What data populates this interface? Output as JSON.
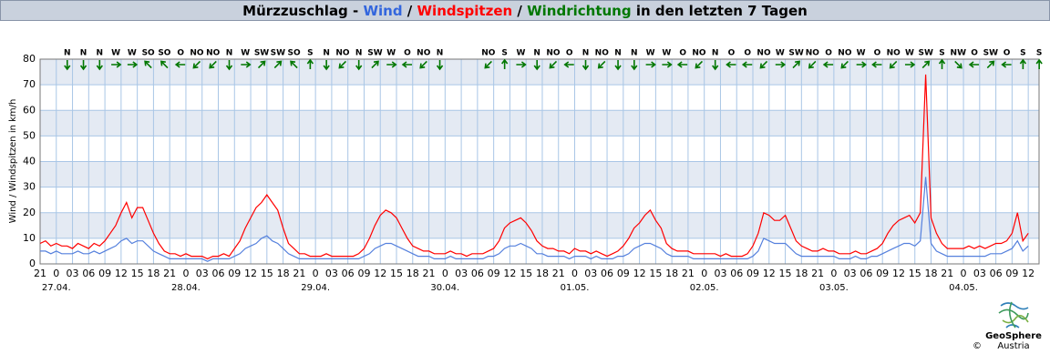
{
  "chart_data": {
    "type": "line",
    "title_prefix": "Mürzzuschlag - ",
    "title_sep": " / ",
    "title_suffix": " in den letzten 7 Tagen",
    "ylabel": "Wind / Windspitzen in km/h",
    "ylim": [
      0,
      80
    ],
    "yticks": [
      0,
      10,
      20,
      30,
      40,
      50,
      60,
      70,
      80
    ],
    "banded_background": true,
    "band_color": "#e4eaf3",
    "grid": true,
    "grid_color": "#a9c6e6",
    "xlim": [
      "26.04. 21:00",
      "04.05. 14:00"
    ],
    "xticks": [
      {
        "value": "26.04. 21:00",
        "label": "21"
      },
      {
        "value": "27.04. 00:00",
        "label": "0"
      },
      {
        "value": "27.04. 03:00",
        "label": "03"
      },
      {
        "value": "27.04. 06:00",
        "label": "06"
      },
      {
        "value": "27.04. 09:00",
        "label": "09"
      },
      {
        "value": "27.04. 12:00",
        "label": "12"
      },
      {
        "value": "27.04. 15:00",
        "label": "15"
      },
      {
        "value": "27.04. 18:00",
        "label": "18"
      },
      {
        "value": "27.04. 21:00",
        "label": "21"
      },
      {
        "value": "28.04. 00:00",
        "label": "0"
      },
      {
        "value": "28.04. 03:00",
        "label": "03"
      },
      {
        "value": "28.04. 06:00",
        "label": "06"
      },
      {
        "value": "28.04. 09:00",
        "label": "09"
      },
      {
        "value": "28.04. 12:00",
        "label": "12"
      },
      {
        "value": "28.04. 15:00",
        "label": "15"
      },
      {
        "value": "28.04. 18:00",
        "label": "18"
      },
      {
        "value": "28.04. 21:00",
        "label": "21"
      },
      {
        "value": "29.04. 00:00",
        "label": "0"
      },
      {
        "value": "29.04. 03:00",
        "label": "03"
      },
      {
        "value": "29.04. 06:00",
        "label": "06"
      },
      {
        "value": "29.04. 09:00",
        "label": "09"
      },
      {
        "value": "29.04. 12:00",
        "label": "12"
      },
      {
        "value": "29.04. 15:00",
        "label": "15"
      },
      {
        "value": "29.04. 18:00",
        "label": "18"
      },
      {
        "value": "29.04. 21:00",
        "label": "21"
      },
      {
        "value": "30.04. 00:00",
        "label": "0"
      },
      {
        "value": "30.04. 03:00",
        "label": "03"
      },
      {
        "value": "30.04. 06:00",
        "label": "06"
      },
      {
        "value": "30.04. 09:00",
        "label": "09"
      },
      {
        "value": "30.04. 12:00",
        "label": "12"
      },
      {
        "value": "30.04. 15:00",
        "label": "15"
      },
      {
        "value": "30.04. 18:00",
        "label": "18"
      },
      {
        "value": "30.04. 21:00",
        "label": "21"
      },
      {
        "value": "01.05. 00:00",
        "label": "0"
      },
      {
        "value": "01.05. 03:00",
        "label": "03"
      },
      {
        "value": "01.05. 06:00",
        "label": "06"
      },
      {
        "value": "01.05. 09:00",
        "label": "09"
      },
      {
        "value": "01.05. 12:00",
        "label": "12"
      },
      {
        "value": "01.05. 15:00",
        "label": "15"
      },
      {
        "value": "01.05. 18:00",
        "label": "18"
      },
      {
        "value": "01.05. 21:00",
        "label": "21"
      },
      {
        "value": "02.05. 00:00",
        "label": "0"
      },
      {
        "value": "02.05. 03:00",
        "label": "03"
      },
      {
        "value": "02.05. 06:00",
        "label": "06"
      },
      {
        "value": "02.05. 09:00",
        "label": "09"
      },
      {
        "value": "02.05. 12:00",
        "label": "12"
      },
      {
        "value": "02.05. 15:00",
        "label": "15"
      },
      {
        "value": "02.05. 18:00",
        "label": "18"
      },
      {
        "value": "02.05. 21:00",
        "label": "21"
      },
      {
        "value": "03.05. 00:00",
        "label": "0"
      },
      {
        "value": "03.05. 03:00",
        "label": "03"
      },
      {
        "value": "03.05. 06:00",
        "label": "06"
      },
      {
        "value": "03.05. 09:00",
        "label": "09"
      },
      {
        "value": "03.05. 12:00",
        "label": "12"
      },
      {
        "value": "03.05. 15:00",
        "label": "15"
      },
      {
        "value": "03.05. 18:00",
        "label": "18"
      },
      {
        "value": "03.05. 21:00",
        "label": "21"
      },
      {
        "value": "04.05. 00:00",
        "label": "0"
      },
      {
        "value": "04.05. 03:00",
        "label": "03"
      },
      {
        "value": "04.05. 06:00",
        "label": "06"
      },
      {
        "value": "04.05. 09:00",
        "label": "09"
      },
      {
        "value": "04.05. 12:00",
        "label": "12"
      }
    ],
    "date_labels": [
      {
        "value": "27.04. 00:00",
        "label": "27.04."
      },
      {
        "value": "28.04. 00:00",
        "label": "28.04."
      },
      {
        "value": "29.04. 00:00",
        "label": "29.04."
      },
      {
        "value": "30.04. 00:00",
        "label": "30.04."
      },
      {
        "value": "01.05. 00:00",
        "label": "01.05."
      },
      {
        "value": "02.05. 00:00",
        "label": "02.05."
      },
      {
        "value": "03.05. 00:00",
        "label": "03.05."
      },
      {
        "value": "04.05. 00:00",
        "label": "04.05."
      }
    ],
    "x": [
      "26.04. 21:00",
      "26.04. 22:00",
      "26.04. 23:00",
      "27.04. 00:00",
      "27.04. 01:00",
      "27.04. 02:00",
      "27.04. 03:00",
      "27.04. 04:00",
      "27.04. 05:00",
      "27.04. 06:00",
      "27.04. 07:00",
      "27.04. 08:00",
      "27.04. 09:00",
      "27.04. 10:00",
      "27.04. 11:00",
      "27.04. 12:00",
      "27.04. 13:00",
      "27.04. 14:00",
      "27.04. 15:00",
      "27.04. 16:00",
      "27.04. 17:00",
      "27.04. 18:00",
      "27.04. 19:00",
      "27.04. 20:00",
      "27.04. 21:00",
      "27.04. 22:00",
      "27.04. 23:00",
      "28.04. 00:00",
      "28.04. 01:00",
      "28.04. 02:00",
      "28.04. 03:00",
      "28.04. 04:00",
      "28.04. 05:00",
      "28.04. 06:00",
      "28.04. 07:00",
      "28.04. 08:00",
      "28.04. 09:00",
      "28.04. 10:00",
      "28.04. 11:00",
      "28.04. 12:00",
      "28.04. 13:00",
      "28.04. 14:00",
      "28.04. 15:00",
      "28.04. 16:00",
      "28.04. 17:00",
      "28.04. 18:00",
      "28.04. 19:00",
      "28.04. 20:00",
      "28.04. 21:00",
      "28.04. 22:00",
      "28.04. 23:00",
      "29.04. 00:00",
      "29.04. 01:00",
      "29.04. 02:00",
      "29.04. 03:00",
      "29.04. 04:00",
      "29.04. 05:00",
      "29.04. 06:00",
      "29.04. 07:00",
      "29.04. 08:00",
      "29.04. 09:00",
      "29.04. 10:00",
      "29.04. 11:00",
      "29.04. 12:00",
      "29.04. 13:00",
      "29.04. 14:00",
      "29.04. 15:00",
      "29.04. 16:00",
      "29.04. 17:00",
      "29.04. 18:00",
      "29.04. 19:00",
      "29.04. 20:00",
      "29.04. 21:00",
      "29.04. 22:00",
      "29.04. 23:00",
      "30.04. 00:00",
      "30.04. 01:00",
      "30.04. 02:00",
      "30.04. 03:00",
      "30.04. 04:00",
      "30.04. 05:00",
      "30.04. 06:00",
      "30.04. 07:00",
      "30.04. 08:00",
      "30.04. 09:00",
      "30.04. 10:00",
      "30.04. 11:00",
      "30.04. 12:00",
      "30.04. 13:00",
      "30.04. 14:00",
      "30.04. 15:00",
      "30.04. 16:00",
      "30.04. 17:00",
      "30.04. 18:00",
      "30.04. 19:00",
      "30.04. 20:00",
      "30.04. 21:00",
      "30.04. 22:00",
      "30.04. 23:00",
      "01.05. 00:00",
      "01.05. 01:00",
      "01.05. 02:00",
      "01.05. 03:00",
      "01.05. 04:00",
      "01.05. 05:00",
      "01.05. 06:00",
      "01.05. 07:00",
      "01.05. 08:00",
      "01.05. 09:00",
      "01.05. 10:00",
      "01.05. 11:00",
      "01.05. 12:00",
      "01.05. 13:00",
      "01.05. 14:00",
      "01.05. 15:00",
      "01.05. 16:00",
      "01.05. 17:00",
      "01.05. 18:00",
      "01.05. 19:00",
      "01.05. 20:00",
      "01.05. 21:00",
      "01.05. 22:00",
      "01.05. 23:00",
      "02.05. 00:00",
      "02.05. 01:00",
      "02.05. 02:00",
      "02.05. 03:00",
      "02.05. 04:00",
      "02.05. 05:00",
      "02.05. 06:00",
      "02.05. 07:00",
      "02.05. 08:00",
      "02.05. 09:00",
      "02.05. 10:00",
      "02.05. 11:00",
      "02.05. 12:00",
      "02.05. 13:00",
      "02.05. 14:00",
      "02.05. 15:00",
      "02.05. 16:00",
      "02.05. 17:00",
      "02.05. 18:00",
      "02.05. 19:00",
      "02.05. 20:00",
      "02.05. 21:00",
      "02.05. 22:00",
      "02.05. 23:00",
      "03.05. 00:00",
      "03.05. 01:00",
      "03.05. 02:00",
      "03.05. 03:00",
      "03.05. 04:00",
      "03.05. 05:00",
      "03.05. 06:00",
      "03.05. 07:00",
      "03.05. 08:00",
      "03.05. 09:00",
      "03.05. 10:00",
      "03.05. 11:00",
      "03.05. 12:00",
      "03.05. 13:00",
      "03.05. 14:00",
      "03.05. 15:00",
      "03.05. 16:00",
      "03.05. 17:00",
      "03.05. 18:00",
      "03.05. 19:00",
      "03.05. 20:00",
      "03.05. 21:00",
      "03.05. 22:00",
      "03.05. 23:00",
      "04.05. 00:00",
      "04.05. 01:00",
      "04.05. 02:00",
      "04.05. 03:00",
      "04.05. 04:00",
      "04.05. 05:00",
      "04.05. 06:00",
      "04.05. 07:00",
      "04.05. 08:00",
      "04.05. 09:00",
      "04.05. 10:00",
      "04.05. 11:00",
      "04.05. 12:00"
    ],
    "series": [
      {
        "name": "Windspitzen",
        "color": "#ff0000",
        "values": [
          8,
          9,
          7,
          8,
          7,
          7,
          6,
          8,
          7,
          6,
          8,
          7,
          9,
          12,
          15,
          20,
          24,
          18,
          22,
          22,
          17,
          12,
          8,
          5,
          4,
          4,
          3,
          4,
          3,
          3,
          3,
          2,
          3,
          3,
          4,
          3,
          6,
          9,
          14,
          18,
          22,
          24,
          27,
          24,
          21,
          14,
          8,
          6,
          4,
          4,
          3,
          3,
          3,
          4,
          3,
          3,
          3,
          3,
          3,
          4,
          6,
          10,
          15,
          19,
          21,
          20,
          18,
          14,
          10,
          7,
          6,
          5,
          5,
          4,
          4,
          4,
          5,
          4,
          4,
          3,
          4,
          4,
          4,
          5,
          6,
          9,
          14,
          16,
          17,
          18,
          16,
          13,
          9,
          7,
          6,
          6,
          5,
          5,
          4,
          6,
          5,
          5,
          4,
          5,
          4,
          3,
          4,
          5,
          7,
          10,
          14,
          16,
          19,
          21,
          17,
          14,
          8,
          6,
          5,
          5,
          5,
          4,
          4,
          4,
          4,
          4,
          3,
          4,
          3,
          3,
          3,
          4,
          7,
          12,
          20,
          19,
          17,
          17,
          19,
          14,
          9,
          7,
          6,
          5,
          5,
          6,
          5,
          5,
          4,
          4,
          4,
          5,
          4,
          4,
          5,
          6,
          8,
          12,
          15,
          17,
          18,
          19,
          16,
          20,
          74,
          18,
          12,
          8,
          6,
          6,
          6,
          6,
          7,
          6,
          7,
          6,
          7,
          8,
          8,
          9,
          12,
          20,
          9,
          12
        ]
      },
      {
        "name": "Wind",
        "color": "#5580dd",
        "values": [
          5,
          5,
          4,
          5,
          4,
          4,
          4,
          5,
          4,
          4,
          5,
          4,
          5,
          6,
          7,
          9,
          10,
          8,
          9,
          9,
          7,
          5,
          4,
          3,
          2,
          2,
          2,
          2,
          2,
          2,
          2,
          1,
          2,
          2,
          2,
          2,
          3,
          4,
          6,
          7,
          8,
          10,
          11,
          9,
          8,
          6,
          4,
          3,
          2,
          2,
          2,
          2,
          2,
          2,
          2,
          2,
          2,
          2,
          2,
          2,
          3,
          4,
          6,
          7,
          8,
          8,
          7,
          6,
          5,
          4,
          3,
          3,
          3,
          2,
          2,
          2,
          3,
          2,
          2,
          2,
          2,
          2,
          2,
          3,
          3,
          4,
          6,
          7,
          7,
          8,
          7,
          6,
          4,
          4,
          3,
          3,
          3,
          3,
          2,
          3,
          3,
          3,
          2,
          3,
          2,
          2,
          2,
          3,
          3,
          4,
          6,
          7,
          8,
          8,
          7,
          6,
          4,
          3,
          3,
          3,
          3,
          2,
          2,
          2,
          2,
          2,
          2,
          2,
          2,
          2,
          2,
          2,
          3,
          5,
          10,
          9,
          8,
          8,
          8,
          6,
          4,
          3,
          3,
          3,
          3,
          3,
          3,
          3,
          2,
          2,
          2,
          3,
          2,
          2,
          3,
          3,
          4,
          5,
          6,
          7,
          8,
          8,
          7,
          9,
          34,
          8,
          5,
          4,
          3,
          3,
          3,
          3,
          3,
          3,
          3,
          3,
          4,
          4,
          4,
          5,
          6,
          9,
          5,
          7
        ]
      }
    ],
    "wind_direction": {
      "name": "Windrichtung",
      "color": "#007700",
      "labels": [
        null,
        "N",
        "N",
        "N",
        "W",
        "W",
        "SO",
        "SO",
        "O",
        "NO",
        "NO",
        "N",
        "W",
        "SW",
        "SW",
        "SO",
        "S",
        "N",
        "NO",
        "N",
        "SW",
        "W",
        "O",
        "NO",
        "N",
        null,
        null,
        "NO",
        "S",
        "W",
        "N",
        "NO",
        "O",
        "N",
        "NO",
        "N",
        "N",
        "W",
        "W",
        "O",
        "NO",
        "N",
        "O",
        "O",
        "NO",
        "W",
        "SW",
        "NO",
        "O",
        "NO",
        "W",
        "O",
        "NO",
        "W",
        "SW",
        "S",
        "NW",
        "O",
        "SW",
        "O",
        "S",
        "S"
      ]
    },
    "logo": {
      "name": "GeoSphere",
      "sub": "Austria",
      "copyright": "©"
    }
  }
}
